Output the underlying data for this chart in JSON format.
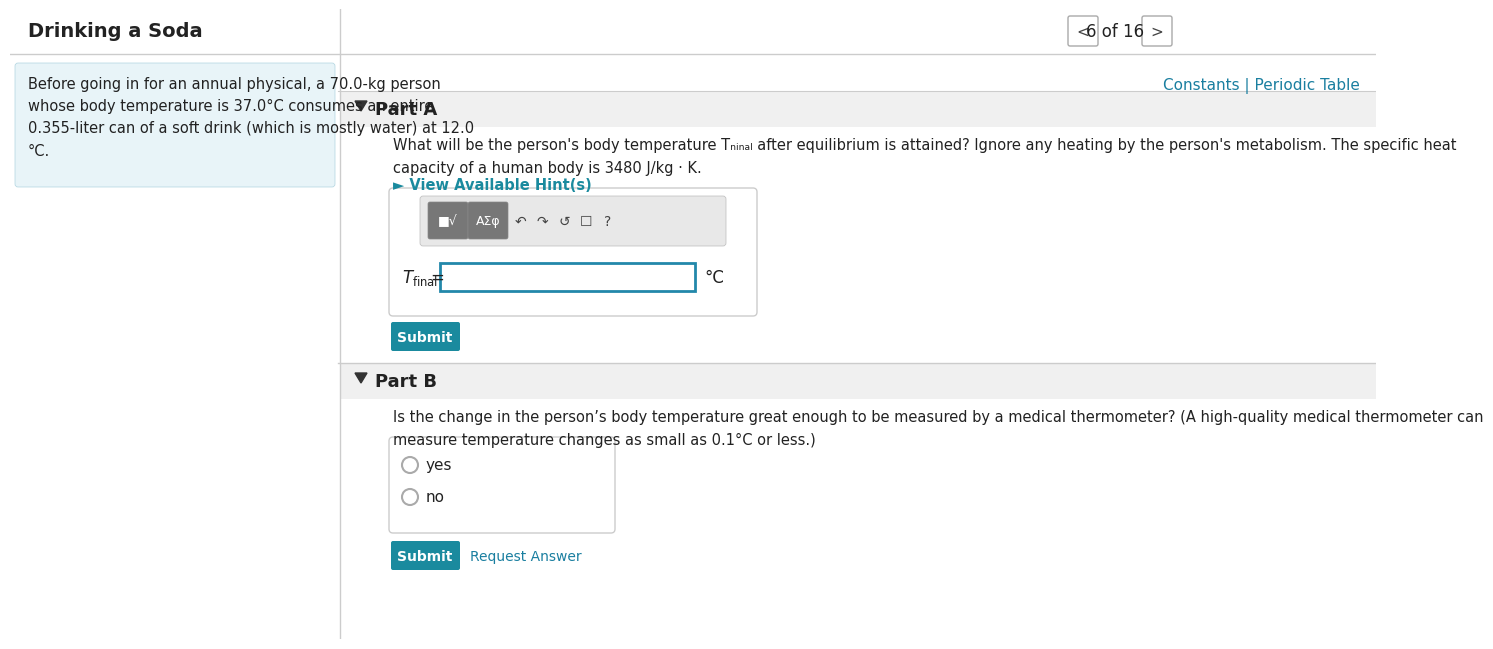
{
  "title": "Drinking a Soda",
  "nav_text": "6 of 16",
  "constants_link": "Constants | Periodic Table",
  "problem_text": "Before going in for an annual physical, a 70.0-kg person\nwhose body temperature is 37.0°C consumes an entire\n0.355-liter can of a soft drink (which is mostly water) at 12.0\n°C.",
  "part_a_label": "Part A",
  "part_a_question": "What will be the person's body temperature Tₙᵢₙₐₗ after equilibrium is attained? Ignore any heating by the person's metabolism. The specific heat\ncapacity of a human body is 3480 J/kg · K.",
  "hint_text": "► View Available Hint(s)",
  "unit_label": "°C",
  "submit_text": "Submit",
  "part_b_label": "Part B",
  "part_b_question": "Is the change in the person’s body temperature great enough to be measured by a medical thermometer? (A high-quality medical thermometer can\nmeasure temperature changes as small as 0.1°C or less.)",
  "radio_yes": "yes",
  "radio_no": "no",
  "request_answer": "Request Answer",
  "bg_color": "#ffffff",
  "problem_bg": "#e8f4f8",
  "part_header_bg": "#f0f0f0",
  "submit_color": "#1a8a9e",
  "submit_text_color": "#ffffff",
  "hint_color": "#1a8a9e",
  "title_color": "#222222",
  "link_color": "#1a7fa0",
  "separator_color": "#cccccc",
  "nav_border_color": "#aaaaaa",
  "input_border_color": "#2288aa",
  "toolbar_btn_bg": "#777777"
}
